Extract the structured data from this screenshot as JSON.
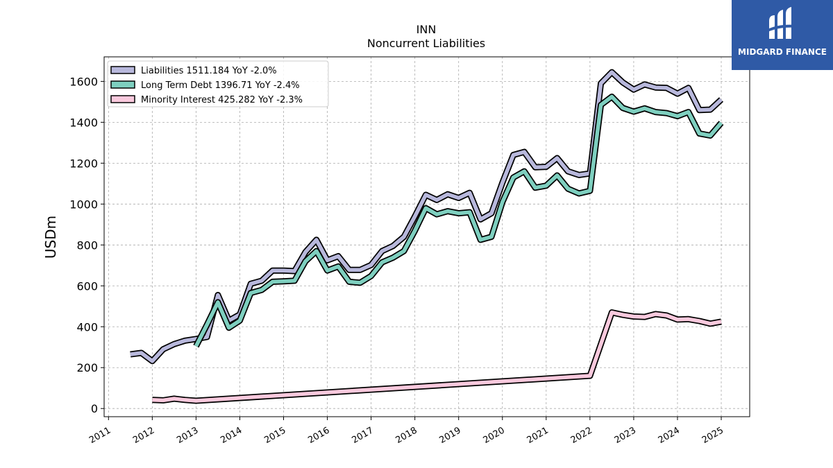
{
  "chart_data": {
    "type": "line",
    "title": "INN",
    "subtitle": "Noncurrent  Liabilities",
    "ylabel": "USDm",
    "xlabel": "",
    "xlim": [
      2010.9,
      2025.65
    ],
    "ylim": [
      -40,
      1720
    ],
    "y_ticks": [
      0,
      200,
      400,
      600,
      800,
      1000,
      1200,
      1400,
      1600
    ],
    "x_ticks": [
      2011,
      2012,
      2013,
      2014,
      2015,
      2016,
      2017,
      2018,
      2019,
      2020,
      2021,
      2022,
      2023,
      2024,
      2025
    ],
    "grid": true,
    "legend_position": "top-left",
    "series": [
      {
        "name": "Liabilities  1511.184 YoY -2.0%",
        "color": "#b8b8dc",
        "points": [
          [
            2011.5,
            265
          ],
          [
            2011.75,
            272
          ],
          [
            2012.0,
            232
          ],
          [
            2012.25,
            290
          ],
          [
            2012.5,
            315
          ],
          [
            2012.75,
            332
          ],
          [
            2013.0,
            340
          ],
          [
            2013.25,
            350
          ],
          [
            2013.5,
            555
          ],
          [
            2013.75,
            430
          ],
          [
            2014.0,
            460
          ],
          [
            2014.25,
            610
          ],
          [
            2014.5,
            625
          ],
          [
            2014.75,
            675
          ],
          [
            2015.0,
            675
          ],
          [
            2015.25,
            672
          ],
          [
            2015.5,
            765
          ],
          [
            2015.75,
            825
          ],
          [
            2016.0,
            725
          ],
          [
            2016.25,
            745
          ],
          [
            2016.5,
            678
          ],
          [
            2016.75,
            678
          ],
          [
            2017.0,
            702
          ],
          [
            2017.25,
            770
          ],
          [
            2017.5,
            795
          ],
          [
            2017.75,
            840
          ],
          [
            2018.0,
            940
          ],
          [
            2018.25,
            1045
          ],
          [
            2018.5,
            1020
          ],
          [
            2018.75,
            1048
          ],
          [
            2019.0,
            1030
          ],
          [
            2019.25,
            1055
          ],
          [
            2019.5,
            925
          ],
          [
            2019.75,
            955
          ],
          [
            2020.0,
            1105
          ],
          [
            2020.25,
            1240
          ],
          [
            2020.5,
            1255
          ],
          [
            2020.75,
            1180
          ],
          [
            2021.0,
            1182
          ],
          [
            2021.25,
            1225
          ],
          [
            2021.5,
            1160
          ],
          [
            2021.75,
            1142
          ],
          [
            2022.0,
            1150
          ],
          [
            2022.25,
            1590
          ],
          [
            2022.5,
            1645
          ],
          [
            2022.75,
            1595
          ],
          [
            2023.0,
            1560
          ],
          [
            2023.25,
            1585
          ],
          [
            2023.5,
            1570
          ],
          [
            2023.75,
            1568
          ],
          [
            2024.0,
            1540
          ],
          [
            2024.25,
            1568
          ],
          [
            2024.5,
            1460
          ],
          [
            2024.75,
            1462
          ],
          [
            2025.0,
            1511
          ]
        ]
      },
      {
        "name": "Long Term Debt  1396.71 YoY -2.4%",
        "color": "#7ecfbf",
        "points": [
          [
            2013.0,
            305
          ],
          [
            2013.25,
            410
          ],
          [
            2013.5,
            520
          ],
          [
            2013.75,
            395
          ],
          [
            2014.0,
            430
          ],
          [
            2014.25,
            565
          ],
          [
            2014.5,
            580
          ],
          [
            2014.75,
            620
          ],
          [
            2015.0,
            622
          ],
          [
            2015.25,
            625
          ],
          [
            2015.5,
            720
          ],
          [
            2015.75,
            770
          ],
          [
            2016.0,
            675
          ],
          [
            2016.25,
            695
          ],
          [
            2016.5,
            620
          ],
          [
            2016.75,
            615
          ],
          [
            2017.0,
            648
          ],
          [
            2017.25,
            715
          ],
          [
            2017.5,
            738
          ],
          [
            2017.75,
            770
          ],
          [
            2018.0,
            870
          ],
          [
            2018.25,
            980
          ],
          [
            2018.5,
            950
          ],
          [
            2018.75,
            965
          ],
          [
            2019.0,
            955
          ],
          [
            2019.25,
            960
          ],
          [
            2019.5,
            825
          ],
          [
            2019.75,
            840
          ],
          [
            2020.0,
            1010
          ],
          [
            2020.25,
            1130
          ],
          [
            2020.5,
            1160
          ],
          [
            2020.75,
            1080
          ],
          [
            2021.0,
            1090
          ],
          [
            2021.25,
            1140
          ],
          [
            2021.5,
            1075
          ],
          [
            2021.75,
            1052
          ],
          [
            2022.0,
            1065
          ],
          [
            2022.25,
            1485
          ],
          [
            2022.5,
            1525
          ],
          [
            2022.75,
            1470
          ],
          [
            2023.0,
            1452
          ],
          [
            2023.25,
            1468
          ],
          [
            2023.5,
            1450
          ],
          [
            2023.75,
            1445
          ],
          [
            2024.0,
            1430
          ],
          [
            2024.25,
            1450
          ],
          [
            2024.5,
            1345
          ],
          [
            2024.75,
            1335
          ],
          [
            2025.0,
            1397
          ]
        ]
      },
      {
        "name": "Minority Interest  425.282 YoY -2.3%",
        "color": "#f9c9dd",
        "points": [
          [
            2012.0,
            42
          ],
          [
            2012.25,
            40
          ],
          [
            2012.5,
            48
          ],
          [
            2012.75,
            42
          ],
          [
            2013.0,
            38
          ],
          [
            2022.0,
            160
          ],
          [
            2022.5,
            470
          ],
          [
            2022.75,
            458
          ],
          [
            2023.0,
            450
          ],
          [
            2023.25,
            448
          ],
          [
            2023.5,
            462
          ],
          [
            2023.75,
            455
          ],
          [
            2024.0,
            435
          ],
          [
            2024.25,
            437
          ],
          [
            2024.5,
            428
          ],
          [
            2024.75,
            415
          ],
          [
            2025.0,
            425
          ]
        ]
      }
    ]
  },
  "logo": {
    "text": "MIDGARD FINANCE",
    "background": "#2f5aa6"
  }
}
